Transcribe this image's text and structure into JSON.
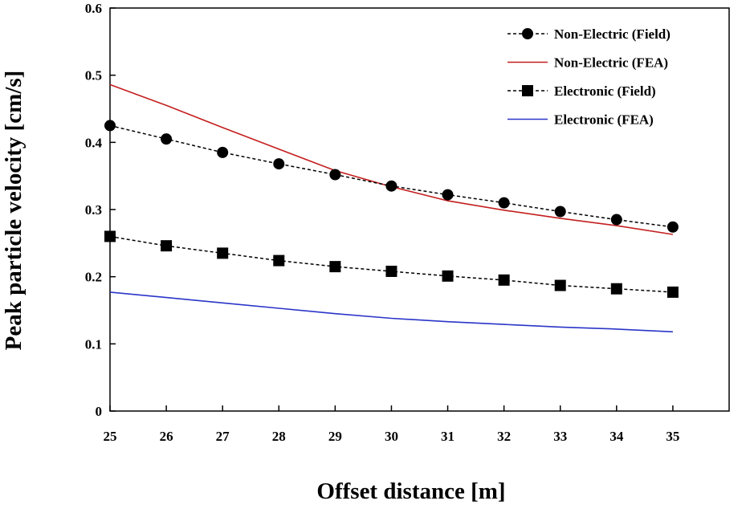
{
  "chart_data": {
    "type": "line",
    "title": "",
    "xlabel": "Offset distance [m]",
    "ylabel": "Peak particle velocity [cm/s]",
    "xlim": [
      25,
      36
    ],
    "ylim": [
      0,
      0.6
    ],
    "x_ticks": [
      25,
      26,
      27,
      28,
      29,
      30,
      31,
      32,
      33,
      34,
      35
    ],
    "y_ticks": [
      "0",
      "0.1",
      "0.2",
      "0.3",
      "0.4",
      "0.5",
      "0.6"
    ],
    "grid": false,
    "legend_position": "top-right",
    "x": [
      25,
      26,
      27,
      28,
      29,
      30,
      31,
      32,
      33,
      34,
      35
    ],
    "series": [
      {
        "name": "Non-Electric (Field)",
        "style": "dashed-marker",
        "marker": "circle",
        "color": "#000000",
        "values": [
          0.425,
          0.405,
          0.385,
          0.368,
          0.352,
          0.335,
          0.322,
          0.31,
          0.297,
          0.285,
          0.274
        ]
      },
      {
        "name": "Non-Electric (FEA)",
        "style": "solid",
        "color": "#c41e1e",
        "values": [
          0.486,
          0.455,
          0.422,
          0.39,
          0.358,
          0.334,
          0.313,
          0.299,
          0.287,
          0.276,
          0.263
        ]
      },
      {
        "name": "Electronic (Field)",
        "style": "dashed-marker",
        "marker": "square",
        "color": "#000000",
        "values": [
          0.26,
          0.246,
          0.235,
          0.224,
          0.215,
          0.208,
          0.201,
          0.195,
          0.187,
          0.182,
          0.177
        ]
      },
      {
        "name": "Electronic (FEA)",
        "style": "solid",
        "color": "#2b35c8",
        "values": [
          0.177,
          0.169,
          0.161,
          0.153,
          0.145,
          0.138,
          0.133,
          0.129,
          0.125,
          0.122,
          0.118
        ]
      }
    ]
  }
}
